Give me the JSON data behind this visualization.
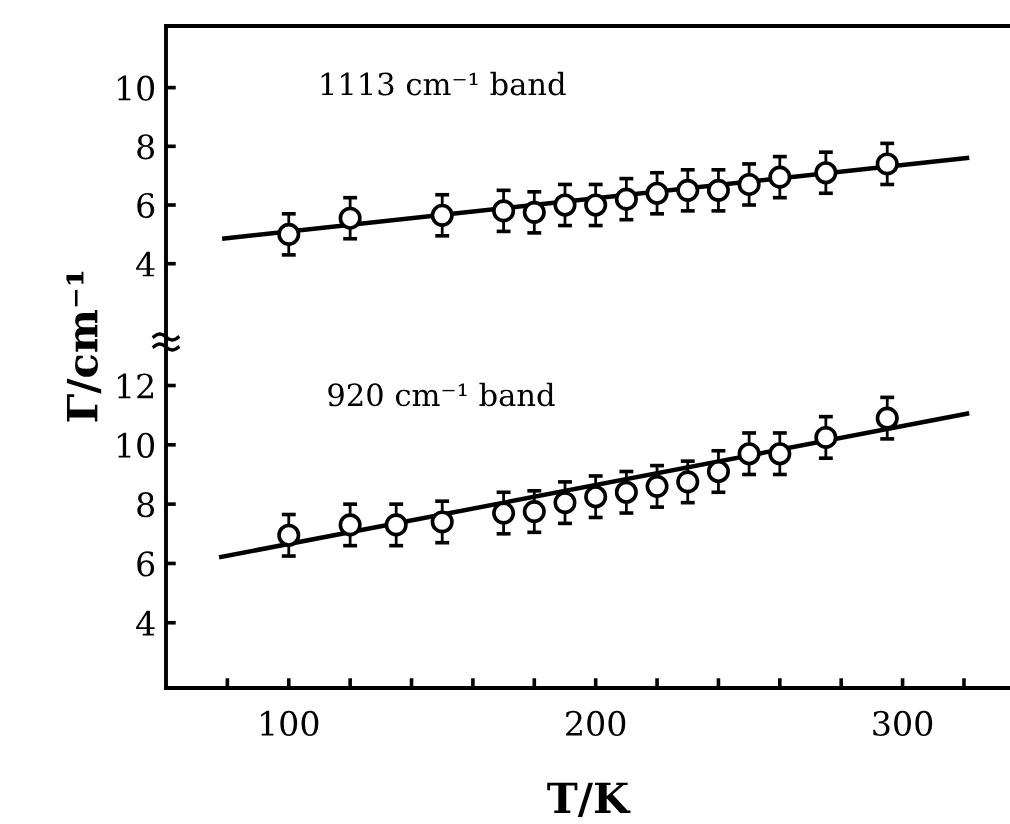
{
  "chart_data": [
    {
      "type": "scatter",
      "xlim": [
        60,
        335
      ],
      "ylim": [
        1.4,
        12.1
      ],
      "yticks": [
        4,
        6,
        8,
        10
      ],
      "tick_labels": "y",
      "annotations": [
        "1113 cm⁻¹ band"
      ],
      "series": [
        {
          "marker": "circle",
          "color": "#000000",
          "x": [
            100,
            120,
            150,
            170,
            180,
            190,
            200,
            210,
            220,
            230,
            240,
            250,
            260,
            275,
            295
          ],
          "values": [
            5.0,
            5.55,
            5.65,
            5.8,
            5.75,
            6.0,
            6.0,
            6.2,
            6.4,
            6.5,
            6.5,
            6.7,
            6.95,
            7.1,
            7.4
          ],
          "errors": [
            0.7,
            0.7,
            0.7,
            0.7,
            0.7,
            0.7,
            0.7,
            0.7,
            0.7,
            0.7,
            0.7,
            0.7,
            0.7,
            0.7,
            0.7
          ]
        },
        {
          "type": "line",
          "color": "#000000",
          "line_style": "solid",
          "x": [
            79,
            321
          ],
          "values": [
            4.86,
            7.6
          ]
        }
      ]
    },
    {
      "type": "scatter",
      "xlim": [
        60,
        335
      ],
      "ylim": [
        1.8,
        13.4
      ],
      "yticks": [
        4,
        6,
        8,
        10,
        12
      ],
      "xticks": [
        {
          "value": 80,
          "label": null
        },
        100,
        {
          "value": 120,
          "label": null
        },
        {
          "value": 140,
          "label": null
        },
        {
          "value": 160,
          "label": null
        },
        {
          "value": 180,
          "label": null
        },
        200,
        {
          "value": 220,
          "label": null
        },
        {
          "value": 240,
          "label": null
        },
        {
          "value": 260,
          "label": null
        },
        {
          "value": 280,
          "label": null
        },
        300,
        {
          "value": 320,
          "label": null
        }
      ],
      "xlabel": "T/K",
      "ylabel": "Γ/cm⁻¹",
      "annotations": [
        "920 cm⁻¹ band"
      ],
      "series": [
        {
          "marker": "circle",
          "color": "#000000",
          "x": [
            100,
            120,
            135,
            150,
            170,
            180,
            190,
            200,
            210,
            220,
            230,
            240,
            250,
            260,
            275,
            295
          ],
          "values": [
            6.95,
            7.3,
            7.3,
            7.4,
            7.7,
            7.75,
            8.05,
            8.25,
            8.4,
            8.6,
            8.75,
            9.1,
            9.7,
            9.7,
            10.25,
            10.9
          ],
          "errors": [
            0.7,
            0.7,
            0.7,
            0.7,
            0.7,
            0.7,
            0.7,
            0.7,
            0.7,
            0.7,
            0.7,
            0.7,
            0.7,
            0.7,
            0.7,
            0.7
          ]
        },
        {
          "type": "line",
          "color": "#000000",
          "line_style": "solid",
          "x": [
            78,
            321
          ],
          "values": [
            6.22,
            11.05
          ]
        }
      ]
    }
  ]
}
